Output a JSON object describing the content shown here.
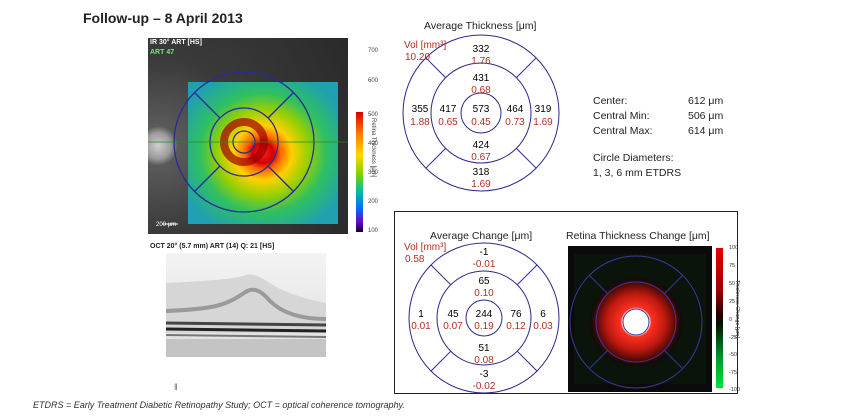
{
  "title": "Follow-up – 8 April 2013",
  "fundus": {
    "header": "IR 30° ART [HS]",
    "header2": "ART 47",
    "scale_label": "200 μm",
    "colorbar_ticks": [
      "700",
      "600",
      "500",
      "400",
      "300",
      "200",
      "100"
    ],
    "colorbar_label": "Retina Thickness [μm]"
  },
  "oct": {
    "header": "OCT 20° (5.7 mm) ART (14) Q: 21 [HS]"
  },
  "thickness_map": {
    "heading": "Average Thickness [μm]",
    "vol_label": "Vol [mm³]",
    "vol_value": "10.20",
    "center": {
      "thickness": "573",
      "volume": "0.45"
    },
    "inner": {
      "superior": {
        "thickness": "431",
        "volume": "0.68"
      },
      "nasal": {
        "thickness": "464",
        "volume": "0.73"
      },
      "inferior": {
        "thickness": "424",
        "volume": "0.67"
      },
      "temporal": {
        "thickness": "417",
        "volume": "0.65"
      }
    },
    "outer": {
      "superior": {
        "thickness": "332",
        "volume": "1.76"
      },
      "nasal": {
        "thickness": "319",
        "volume": "1.69"
      },
      "inferior": {
        "thickness": "318",
        "volume": "1.69"
      },
      "temporal": {
        "thickness": "355",
        "volume": "1.88"
      }
    }
  },
  "stats": {
    "rows": [
      {
        "label": "Center:",
        "value": "612 μm"
      },
      {
        "label": "Central Min:",
        "value": "506 μm"
      },
      {
        "label": "Central Max:",
        "value": "614 μm"
      }
    ],
    "circle_label": "Circle Diameters:",
    "circle_value": "1, 3, 6 mm ETDRS"
  },
  "change_map": {
    "heading": "Average Change [μm]",
    "vol_label": "Vol [mm³]",
    "vol_value": "0.58",
    "center": {
      "thickness": "244",
      "volume": "0.19"
    },
    "inner": {
      "superior": {
        "thickness": "65",
        "volume": "0.10"
      },
      "nasal": {
        "thickness": "76",
        "volume": "0.12"
      },
      "inferior": {
        "thickness": "51",
        "volume": "0.08"
      },
      "temporal": {
        "thickness": "45",
        "volume": "0.07"
      }
    },
    "outer": {
      "superior": {
        "thickness": "-1",
        "volume": "-0.01"
      },
      "nasal": {
        "thickness": "6",
        "volume": "0.03"
      },
      "inferior": {
        "thickness": "-3",
        "volume": "-0.02"
      },
      "temporal": {
        "thickness": "1",
        "volume": "0.01"
      }
    }
  },
  "retina_change": {
    "heading": "Retina Thickness Change [μm]",
    "ticks": [
      "100",
      "75",
      "50",
      "25",
      "0",
      "-25",
      "-50",
      "-75",
      "-100"
    ],
    "bar_label": "Thickness Change [μm]"
  },
  "footnote": "ETDRS = Early Treatment Diabetic Retinopathy Study; OCT = optical coherence tomography.",
  "colors": {
    "value_red": "#b03020",
    "ring_blue": "#2a2a8a",
    "grid_grey": "#999999"
  }
}
